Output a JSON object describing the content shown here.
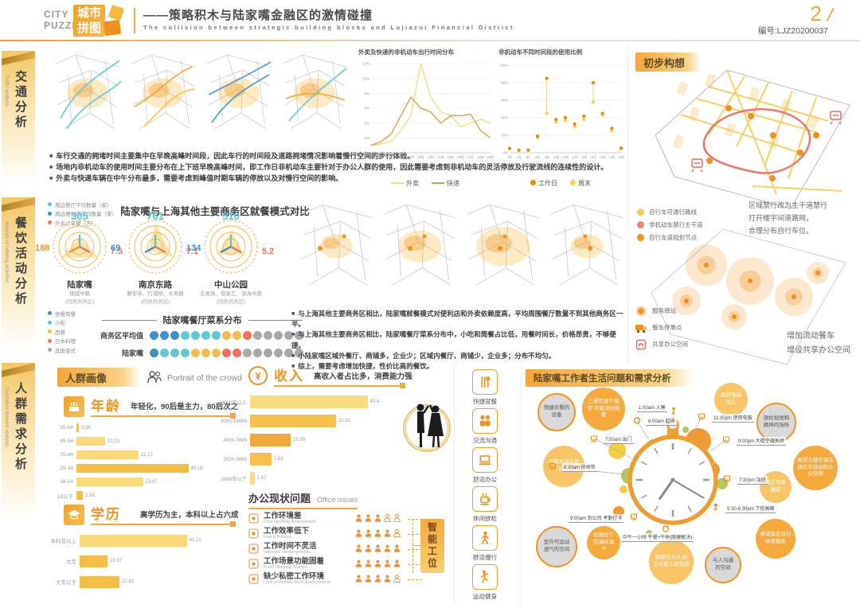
{
  "colors": {
    "accent": "#f0941f",
    "gold": "#f5b93e",
    "light_bar": "#f9d978",
    "dark_bar": "#f5bd45",
    "bullet_blue": "#2f4d8e"
  },
  "header": {
    "logo_en_line1": "CITY",
    "logo_en_line2": "PUZZLE",
    "logo_cn_line1": "城市",
    "logo_cn_line2": "拼图",
    "title": "——策略积木与陆家嘴金融区的激情碰撞",
    "subtitle": "The collision between strategic building blocks and Lujiazui Financial District",
    "page_number": "2",
    "slash": "/",
    "serial": "编号:LJZ20200037"
  },
  "sidebar": {
    "tabs": [
      {
        "label": "交通分析",
        "en": "Traffic analysis"
      },
      {
        "label": "餐饮活动分析",
        "en": "Analysis of catering activities"
      },
      {
        "label": "人群需求分析",
        "en": "Population demand analysis"
      }
    ]
  },
  "traffic": {
    "bullets": [
      "车行交通的拥堵时间主要集中在早晚高峰时间段，因此车行的时间段及道路拥堵情况影响着慢行空间的步行体验。",
      "场地内非机动车的使用时间主要分布在上下班早晚高峰时间，即工作日非机动车主要针对于办公人群的使用，因此需要考虑到非机动车的灵活停放及行驶流线的连续性的设计。",
      "外卖与快递车辆在中午分布最多，需要考虑到峰值时期车辆的停放以及对慢行空间的影响。"
    ]
  },
  "catering": {
    "bullets": [
      "与上海其他主要商务区相比，陆家嘴就餐模式对便利店和外卖依赖度高，平均周围餐厅数量不到其他商务区一半。",
      "与上海其他主要商务区相比，陆家嘴餐厅菜系分布中，小吃和简餐占比低，用餐时间长，价格昂贵，不够便捷。",
      "小陆家嘴区域外餐厅、商铺多，企业少；区域内餐厅、商铺少，企业多；分布不均匀。",
      "综上，需要考虑增加快捷，性价比高的餐饮。"
    ]
  },
  "concept": {
    "title": "初步构想",
    "legend_routes": [
      {
        "label": "自行车可通行路线",
        "color": "#f7d04b"
      },
      {
        "label": "非机动车禁行主干道",
        "color": "#f08576"
      },
      {
        "label": "自行车道规划节点",
        "color": "#f0941f"
      }
    ],
    "caption_routes": [
      "区域禁行改为主干道禁行",
      "打开楼宇间道路网，",
      "合理分布自行车位。"
    ],
    "legend_services": [
      {
        "label": "服务驿站",
        "icon": "station-icon"
      },
      {
        "label": "餐车停靠点",
        "icon": "foodtruck-icon"
      },
      {
        "label": "共享办公空间",
        "icon": "shared-office-icon"
      }
    ],
    "caption_services": [
      "增加流动餐车",
      "增设共享办公空间"
    ]
  },
  "demand": {
    "portrait_title": "人群画像",
    "portrait_en": "Portrait of the crowd",
    "office": {
      "title": "办公现状问题",
      "en": "Office issues",
      "solution": "智能工位",
      "rows": [
        {
          "cn": "工作环境差",
          "en": "Poor Working Environment",
          "rating": 3
        },
        {
          "cn": "工作效率低下",
          "en": "Low Efficiency",
          "rating": 4
        },
        {
          "cn": "工作时间不灵活",
          "en": "Inflexible Working Hours",
          "rating": 5
        },
        {
          "cn": "工作场景功能固着",
          "en": "Fixed Working Scenes",
          "rating": 5
        },
        {
          "cn": "缺少私密工作环境",
          "en": "Lack of Private Work Environment",
          "rating": 4
        }
      ]
    },
    "needs": [
      {
        "label": "快捷就餐",
        "icon": "utensils-icon"
      },
      {
        "label": "交流沟通",
        "icon": "people-icon"
      },
      {
        "label": "舒适办公",
        "icon": "desk-icon"
      },
      {
        "label": "休闲放松",
        "icon": "coffee-icon"
      },
      {
        "label": "舒适慢行",
        "icon": "walking-icon"
      },
      {
        "label": "运动健身",
        "icon": "fitness-icon"
      }
    ],
    "clock": {
      "title": "陆家嘴工作者生活问题和需求分析",
      "events": [
        {
          "time": "6:00am 起床",
          "icon": "alarm-icon"
        },
        {
          "time": "7:00am 出门",
          "icon": "bus-icon"
        },
        {
          "time": "8:30am 挤地铁",
          "icon": "metro-icon"
        },
        {
          "time": "9:00am 到公司 考勤打卡",
          "icon": "card-icon"
        },
        {
          "time": "中午一小时 午餐+午休(随便解决)",
          "icon": "meal-icon"
        },
        {
          "time": "5:30-6:30pm 下班高峰",
          "icon": "walk-icon"
        },
        {
          "time": "7:30pm 加班",
          "icon": "laptop-icon"
        },
        {
          "time": "9:00pm 大楼空调关闭",
          "icon": "monitor-icon"
        },
        {
          "time": "11:30pm 使用电脑",
          "icon": "computer-icon"
        },
        {
          "time": "1:00am 入睡",
          "icon": "sleep-icon"
        }
      ],
      "bubbles": [
        {
          "text": "快捷买餐的设备",
          "type": "need"
        },
        {
          "text": "三餐饮食不规律 不能准时就餐",
          "type": "problem"
        },
        {
          "text": "面对电脑过久",
          "type": "problem"
        },
        {
          "text": "放松视觉和精神的场所",
          "type": "need"
        },
        {
          "text": "希望大楼空调关闭后有舒适的办公空间",
          "type": "problem"
        },
        {
          "text": "缺乏体育锻炼",
          "type": "problem"
        },
        {
          "text": "希望就近进行体育锻炼",
          "type": "problem"
        },
        {
          "text": "与人沟通的空间",
          "type": "need"
        },
        {
          "text": "精神压力大 缺乏与家人的沟通",
          "type": "problem"
        },
        {
          "text": "长期处于空调环境中",
          "type": "problem"
        },
        {
          "text": "室外可运动透气的空间",
          "type": "need"
        },
        {
          "text": "不能灵活支配时间",
          "type": "problem"
        }
      ]
    }
  },
  "chart_data": [
    {
      "id": "takeout_express_time",
      "type": "line",
      "title": "外卖及快递的非机动车出行时间分布",
      "x": [
        "7时",
        "8时",
        "9时",
        "10时",
        "11时",
        "12时",
        "13时",
        "14时",
        "15时",
        "16时",
        "17时",
        "18时",
        "19时"
      ],
      "ylim": [
        0,
        12
      ],
      "yticks": [
        "0%",
        "2%",
        "4%",
        "6%",
        "8%",
        "10%",
        "12%"
      ],
      "legend_position": "bottom",
      "series": [
        {
          "name": "外卖",
          "color": "#f0dc7e",
          "values": [
            1,
            1.2,
            1.5,
            3,
            5,
            12,
            7.5,
            5.5,
            5,
            3.5,
            4,
            4.5,
            4
          ]
        },
        {
          "name": "快递",
          "color": "#dd9a3e",
          "values": [
            1,
            1.5,
            2.5,
            5,
            7.5,
            6,
            5.5,
            4,
            5,
            5,
            5.2,
            3,
            2
          ]
        }
      ]
    },
    {
      "id": "nonmotor_usage_ratio",
      "type": "scatter",
      "title": "非机动车不同时间段的使用比例",
      "x": [
        "0时",
        "2时",
        "4时",
        "6时",
        "8时",
        "10时",
        "12时",
        "14时",
        "16时",
        "18时",
        "20时",
        "22时",
        "24时"
      ],
      "ylim": [
        0,
        100
      ],
      "yticks": [
        "0%",
        "20%",
        "40%",
        "60%",
        "80%",
        "100%"
      ],
      "legend_position": "bottom",
      "series": [
        {
          "name": "工作日",
          "color": "#e8890c",
          "values": [
            5,
            3,
            3,
            19,
            85,
            38,
            40,
            33,
            42,
            80,
            45,
            28,
            5
          ]
        },
        {
          "name": "周末",
          "color": "#f7d348",
          "values": [
            5,
            3,
            3,
            17,
            45,
            35,
            37,
            30,
            38,
            58,
            43,
            25,
            6
          ]
        }
      ]
    },
    {
      "id": "dining_mode_compare",
      "type": "radar",
      "title": "陆家嘴与上海其他主要商务区就餐模式对比",
      "axes": [
        "周边餐厅平均数量（家）",
        "周边便利店平均数量（家）",
        "外卖订单量（万）"
      ],
      "axis_colors": [
        "#56c3d3",
        "#3f8fc5",
        "#f2705b"
      ],
      "axis_max": [
        800,
        200,
        8
      ],
      "districts": [
        {
          "name": "陆家嘴",
          "sub": "银城中路",
          "note": "(同类商务区)",
          "values": [
            305,
            188,
            7.5
          ],
          "value_colors": [
            "#56c3d3",
            "#f0941f",
            "#f2705b"
          ]
        },
        {
          "name": "南京东路",
          "sub": "静安寺、打浦桥、长寿路",
          "note": "(同类商务区)",
          "values": [
            761,
            69,
            7.1
          ],
          "value_colors": [
            "#56c3d3",
            "#3f8fc5",
            "#f2705b"
          ]
        },
        {
          "name": "中山公园",
          "sub": "五角场、徐家汇、淮海中路",
          "note": "(同类商务区)",
          "values": [
            510,
            134,
            5.2
          ],
          "value_colors": [
            "#56c3d3",
            "#3f8fc5",
            "#f2705b"
          ]
        }
      ]
    },
    {
      "id": "cuisine_distribution",
      "type": "dot-matrix",
      "title": "陆家嘴餐厅菜系分布",
      "categories": [
        {
          "label": "快餐简餐",
          "color": "#3f8fc5"
        },
        {
          "label": "小吃",
          "color": "#62c8d8"
        },
        {
          "label": "西餐",
          "color": "#f6bb4a"
        },
        {
          "label": "日本料理",
          "color": "#f2705b"
        },
        {
          "label": "其他菜式",
          "color": "#a8a8a8"
        }
      ],
      "rows": [
        {
          "label": "商务区平均值",
          "counts": [
            3,
            4,
            2,
            1,
            5
          ]
        },
        {
          "label": "陆家嘴",
          "counts": [
            1,
            3,
            3,
            2,
            6
          ]
        }
      ]
    },
    {
      "id": "age",
      "type": "bar",
      "title": "年龄",
      "subtitle": "年轻化，90后是主力，80后次之",
      "categories": [
        "55-64",
        "45-54",
        "35-44",
        "25-34",
        "18-24",
        "18以下"
      ],
      "values": [
        0.95,
        10.23,
        22.27,
        40.18,
        23.97,
        2.33
      ],
      "colors": [
        "#f5bd45",
        "#f9d978",
        "#f9d978",
        "#f5bd45",
        "#f9d978",
        "#f5bd45"
      ]
    },
    {
      "id": "education",
      "type": "bar",
      "title": "学历",
      "subtitle": "高学历为主，本科以上占六成",
      "categories": [
        "本科及以上",
        "大专",
        "大专以下"
      ],
      "values": [
        61.21,
        15.97,
        22.82
      ],
      "colors": [
        "#f9d978",
        "#f5bd45",
        "#f5bd45"
      ]
    },
    {
      "id": "income",
      "type": "bar",
      "title": "收入",
      "subtitle": "高收入者占比多，消费能力强",
      "categories": [
        "20000及以上",
        "8000-19999",
        "4000-7999",
        "2500-3999",
        "2499及以下"
      ],
      "values": [
        43.4,
        31.82,
        15.09,
        7.83,
        1.67
      ],
      "colors": [
        "#f7dc82",
        "#f6c14b",
        "#f0a93a",
        "#f6c14b",
        "#f7dc82"
      ]
    }
  ]
}
